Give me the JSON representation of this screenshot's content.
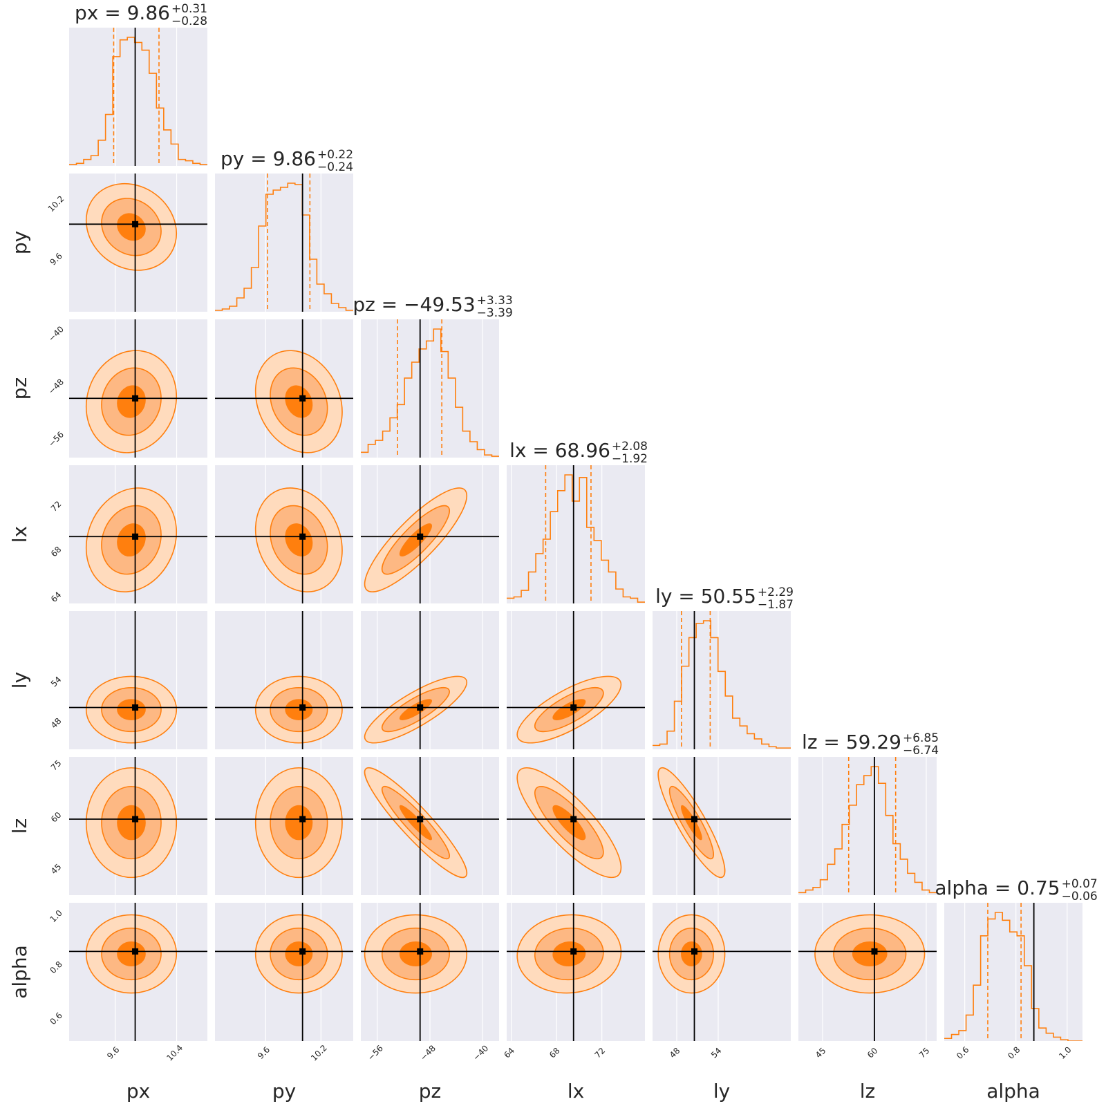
{
  "chart_data": {
    "type": "corner",
    "parameters": [
      "px",
      "py",
      "pz",
      "lx",
      "ly",
      "lz",
      "alpha"
    ],
    "truths": [
      9.86,
      10.0,
      -49.5,
      69.5,
      50.55,
      60.0,
      0.87
    ],
    "ranges": [
      [
        9.0,
        10.8
      ],
      [
        9.05,
        10.55
      ],
      [
        -58.5,
        -37.5
      ],
      [
        63.6,
        75.8
      ],
      [
        44.5,
        64.5
      ],
      [
        38.0,
        78.0
      ],
      [
        0.52,
        1.06
      ]
    ],
    "ticks": [
      [
        9.6,
        10.4
      ],
      [
        9.6,
        10.2
      ],
      [
        -56,
        -48,
        -40
      ],
      [
        64,
        68,
        72
      ],
      [
        48,
        54
      ],
      [
        45,
        60,
        75
      ],
      [
        0.6,
        0.8,
        1.0
      ]
    ],
    "x_tick_labels": [
      [
        "9.6",
        "10.4"
      ],
      [
        "9.6",
        "10.2"
      ],
      [
        "−56",
        "−48",
        "−40"
      ],
      [
        "64",
        "68",
        "72"
      ],
      [
        "48",
        "54"
      ],
      [
        "45",
        "60",
        "75"
      ],
      [
        "0.6",
        "0.8",
        "1.0"
      ]
    ],
    "y_tick_labels": [
      [],
      [
        "9.6",
        "10.2"
      ],
      [
        "−56",
        "−48",
        "−40"
      ],
      [
        "64",
        "68",
        "72"
      ],
      [
        "48",
        "54"
      ],
      [
        "45",
        "60",
        "75"
      ],
      [
        "0.6",
        "0.8",
        "1.0"
      ]
    ],
    "titles": [
      {
        "label": "px",
        "median": "9.86",
        "plus": "+0.31",
        "minus": "−0.28"
      },
      {
        "label": "py",
        "median": "9.86",
        "plus": "+0.22",
        "minus": "−0.24"
      },
      {
        "label": "pz",
        "median": "−49.53",
        "plus": "+3.33",
        "minus": "−3.39"
      },
      {
        "label": "lx",
        "median": "68.96",
        "plus": "+2.08",
        "minus": "−1.92"
      },
      {
        "label": "ly",
        "median": "50.55",
        "plus": "+2.29",
        "minus": "−1.87"
      },
      {
        "label": "lz",
        "median": "59.29",
        "plus": "+6.85",
        "minus": "−6.74"
      },
      {
        "label": "alpha",
        "median": "0.75",
        "plus": "+0.07",
        "minus": "−0.06"
      }
    ],
    "histograms": [
      [
        0.01,
        0.02,
        0.05,
        0.08,
        0.2,
        0.4,
        0.85,
        0.98,
        1.0,
        0.96,
        0.9,
        0.72,
        0.45,
        0.28,
        0.17,
        0.05,
        0.04,
        0.02,
        0.01
      ],
      [
        0.01,
        0.02,
        0.04,
        0.1,
        0.17,
        0.32,
        0.62,
        0.85,
        0.88,
        0.9,
        0.93,
        0.92,
        0.7,
        0.38,
        0.2,
        0.13,
        0.06,
        0.03,
        0.01
      ],
      [
        0.04,
        0.1,
        0.13,
        0.2,
        0.3,
        0.4,
        0.6,
        0.72,
        0.82,
        0.88,
        0.97,
        0.8,
        0.6,
        0.38,
        0.2,
        0.12,
        0.06,
        0.02,
        0.01
      ],
      [
        0.04,
        0.05,
        0.1,
        0.24,
        0.38,
        0.49,
        0.7,
        0.86,
        0.98,
        0.78,
        0.96,
        0.58,
        0.48,
        0.33,
        0.24,
        0.11,
        0.05,
        0.04,
        0.01
      ],
      [
        0.03,
        0.04,
        0.14,
        0.37,
        0.64,
        0.86,
        0.97,
        0.99,
        0.86,
        0.6,
        0.41,
        0.24,
        0.18,
        0.12,
        0.08,
        0.04,
        0.02,
        0.01,
        0.01
      ],
      [
        0.02,
        0.04,
        0.06,
        0.12,
        0.24,
        0.36,
        0.55,
        0.7,
        0.86,
        0.93,
        1.0,
        0.87,
        0.62,
        0.4,
        0.28,
        0.17,
        0.1,
        0.04,
        0.02
      ],
      [
        0.02,
        0.05,
        0.08,
        0.2,
        0.43,
        0.81,
        0.94,
        0.99,
        0.93,
        0.84,
        0.81,
        0.58,
        0.25,
        0.1,
        0.06,
        0.03,
        0.01,
        0.0,
        0.0
      ]
    ],
    "quantiles": [
      [
        9.58,
        10.17
      ],
      [
        9.62,
        10.08
      ],
      [
        -52.92,
        -46.2
      ],
      [
        67.04,
        71.04
      ],
      [
        48.68,
        52.84
      ],
      [
        52.55,
        66.14
      ],
      [
        0.69,
        0.82
      ]
    ],
    "sigma_widths": [
      0.25,
      0.2,
      3.3,
      1.95,
      2.05,
      6.75,
      0.065
    ],
    "correlations": {
      "3-2": 0.85,
      "4-2": 0.82,
      "4-3": 0.75,
      "5-2": -0.92,
      "5-3": -0.82,
      "5-4": -0.88,
      "1-0": -0.15,
      "2-0": 0.1,
      "2-1": -0.2,
      "3-0": 0.15,
      "3-1": -0.2,
      "6-3": 0.05
    },
    "contour_levels": [
      0.5,
      1.0,
      1.5
    ],
    "fill_colors": [
      "#ffdbbd",
      "#fdb883",
      "#ff7f0e"
    ],
    "line_color": "#ff7f0e",
    "truth_color": "#000000",
    "background_color": "#eaeaf2",
    "grid": true
  }
}
